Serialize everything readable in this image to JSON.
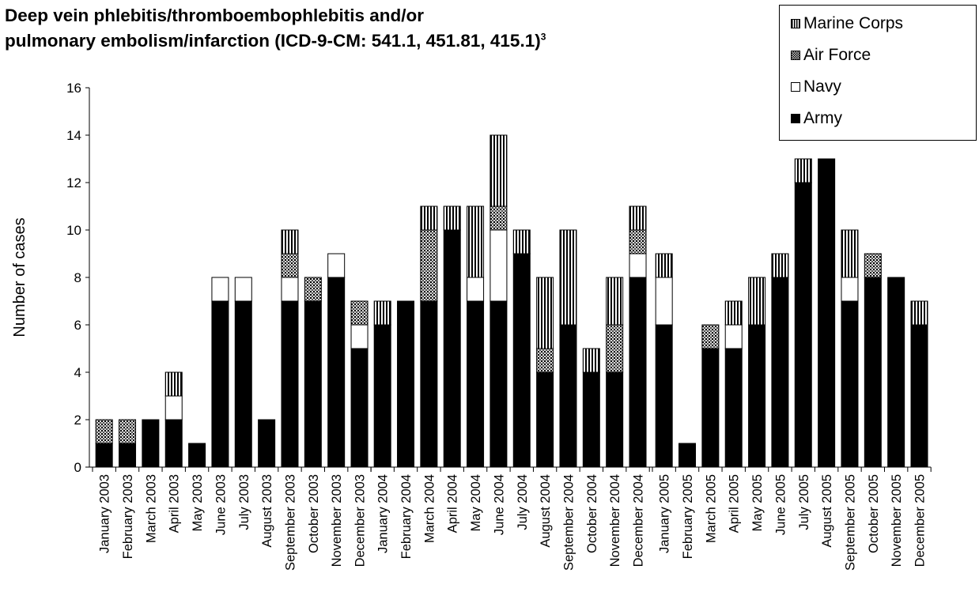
{
  "title_line1": "Deep vein phlebitis/thromboembophlebitis and/or",
  "title_line2": "pulmonary embolism/infarction (ICD-9-CM: 541.1, 451.81, 415.1)",
  "title_superscript": "3",
  "chart_data": {
    "type": "bar",
    "stacked": true,
    "title": "Deep vein phlebitis/thromboembophlebitis and/or pulmonary embolism/infarction (ICD-9-CM: 541.1, 451.81, 415.1)3",
    "xlabel": "",
    "ylabel": "Number of cases",
    "ylim": [
      0,
      16
    ],
    "yticks": [
      0,
      2,
      4,
      6,
      8,
      10,
      12,
      14,
      16
    ],
    "grid": false,
    "legend_position": "top-right",
    "legend_order": [
      "Marine Corps",
      "Air Force",
      "Navy",
      "Army"
    ],
    "categories": [
      "January 2003",
      "February 2003",
      "March 2003",
      "April 2003",
      "May 2003",
      "June 2003",
      "July 2003",
      "August 2003",
      "September 2003",
      "October 2003",
      "November 2003",
      "December 2003",
      "January 2004",
      "February 2004",
      "March 2004",
      "April 2004",
      "May 2004",
      "June 2004",
      "July 2004",
      "August 2004",
      "September 2004",
      "October 2004",
      "November 2004",
      "December 2004",
      "January 2005",
      "February 2005",
      "March 2005",
      "April 2005",
      "May 2005",
      "June 2005",
      "July 2005",
      "August 2005",
      "September 2005",
      "October 2005",
      "November 2005",
      "December 2005"
    ],
    "series": [
      {
        "name": "Army",
        "color": "#000000",
        "pattern": "solid",
        "values": [
          1,
          1,
          2,
          2,
          1,
          7,
          7,
          2,
          7,
          7,
          8,
          5,
          6,
          7,
          7,
          10,
          7,
          7,
          9,
          4,
          6,
          4,
          4,
          8,
          6,
          1,
          5,
          5,
          6,
          8,
          12,
          13,
          7,
          8,
          8,
          6
        ]
      },
      {
        "name": "Navy",
        "color": "#ffffff",
        "pattern": "white",
        "values": [
          0,
          0,
          0,
          1,
          0,
          1,
          1,
          0,
          1,
          0,
          1,
          1,
          0,
          0,
          0,
          0,
          1,
          3,
          0,
          0,
          0,
          0,
          0,
          1,
          2,
          0,
          0,
          1,
          0,
          0,
          0,
          0,
          1,
          0,
          0,
          0
        ]
      },
      {
        "name": "Air Force",
        "color": "#9a9a9a",
        "pattern": "crosshatch",
        "values": [
          1,
          1,
          0,
          0,
          0,
          0,
          0,
          0,
          1,
          1,
          0,
          1,
          0,
          0,
          3,
          0,
          0,
          1,
          0,
          1,
          0,
          0,
          2,
          1,
          0,
          0,
          1,
          0,
          0,
          0,
          0,
          0,
          0,
          1,
          0,
          0
        ]
      },
      {
        "name": "Marine Corps",
        "color": "#888888",
        "pattern": "vertical-lines",
        "values": [
          0,
          0,
          0,
          1,
          0,
          0,
          0,
          0,
          1,
          0,
          0,
          0,
          1,
          0,
          1,
          1,
          3,
          3,
          1,
          3,
          4,
          1,
          2,
          1,
          1,
          0,
          0,
          1,
          2,
          1,
          1,
          0,
          2,
          0,
          0,
          1
        ]
      }
    ]
  }
}
